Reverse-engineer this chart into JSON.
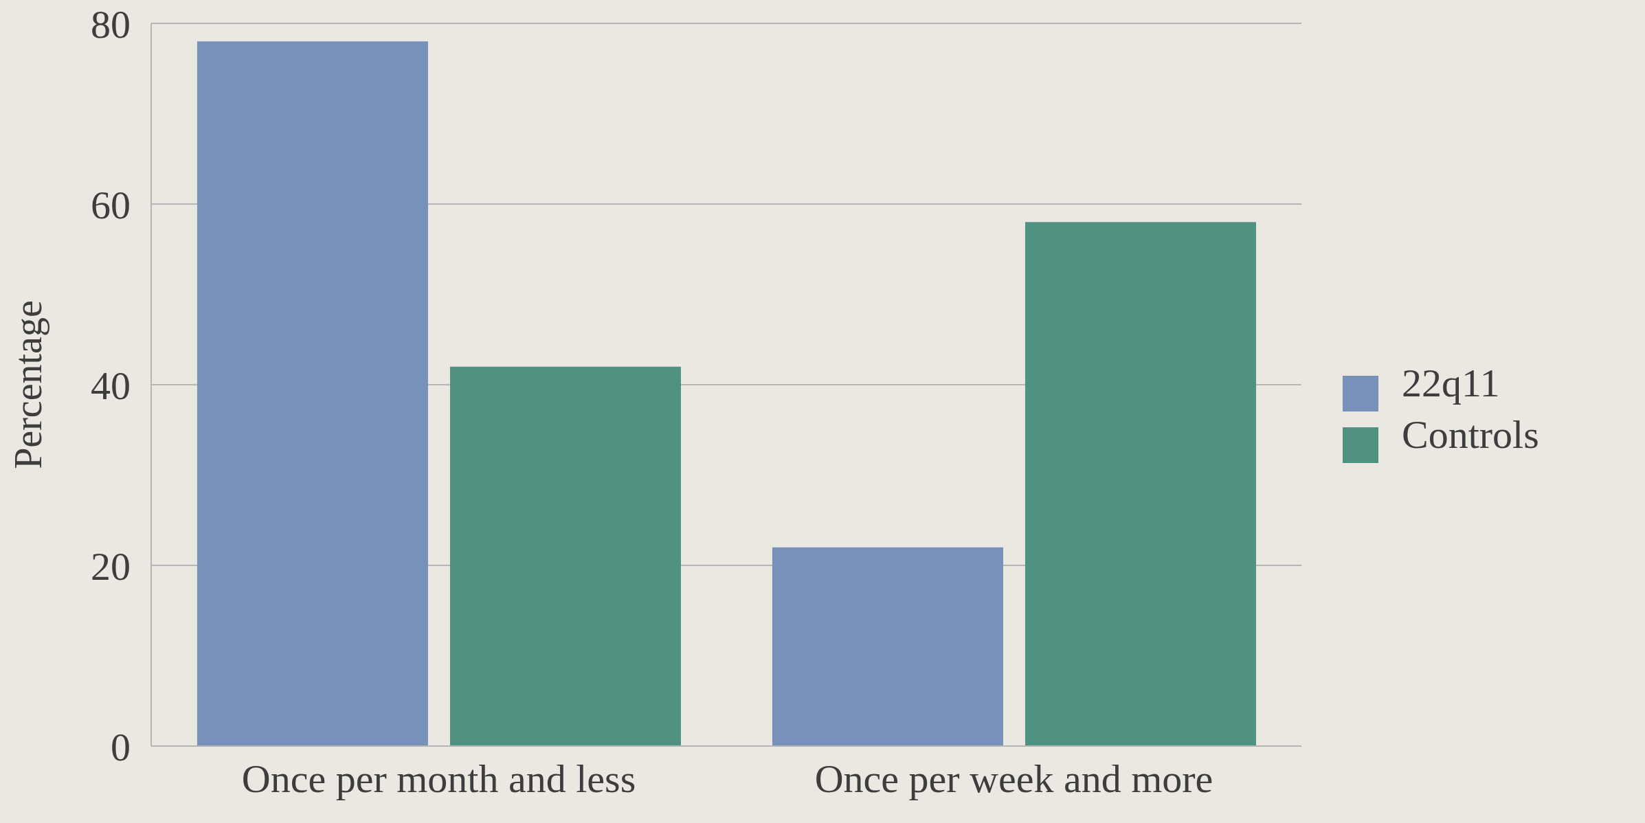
{
  "chart_data": {
    "type": "bar",
    "ylabel": "Percentage",
    "categories": [
      "Once per month and less",
      "Once per week and more"
    ],
    "series": [
      {
        "name": "22q11",
        "color": "#7891ba",
        "values": [
          78,
          22
        ]
      },
      {
        "name": "Controls",
        "color": "#4f9282",
        "values": [
          42,
          58
        ]
      }
    ],
    "ylim": [
      0,
      80
    ],
    "yticks": [
      0,
      20,
      40,
      60,
      80
    ],
    "grid": "y",
    "legend": "right"
  }
}
